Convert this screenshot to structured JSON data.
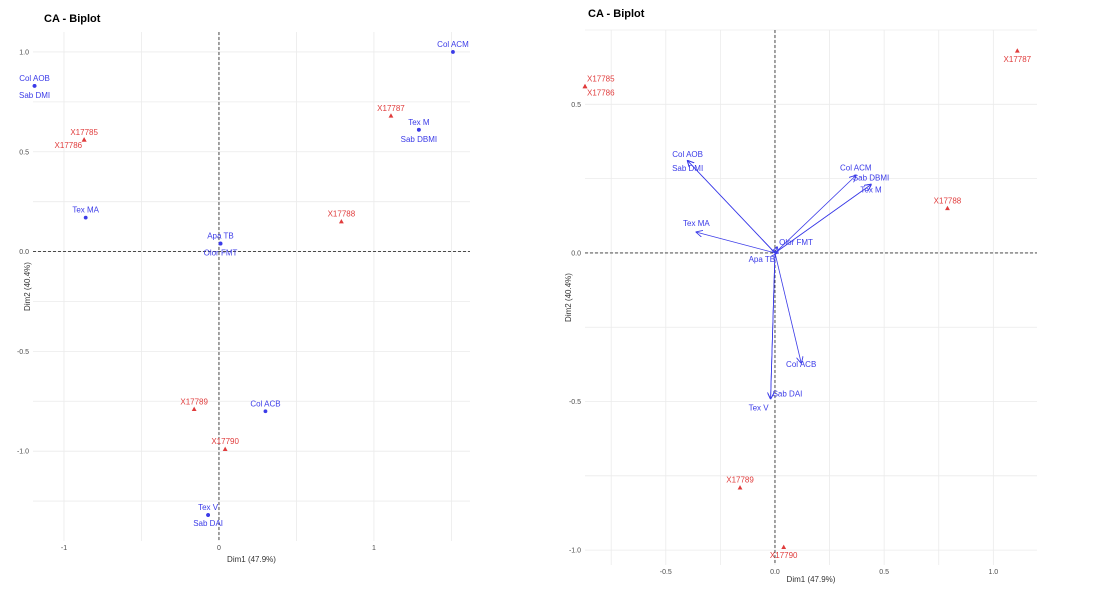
{
  "colors": {
    "rows": "#e03c3c",
    "cols": "#3b3be8",
    "grid": "#ebebeb",
    "ref": "#333333"
  },
  "chart_data": [
    {
      "type": "scatter",
      "title": "CA - Biplot",
      "xlabel": "Dim1 (47.9%)",
      "ylabel": "Dim2 (40.4%)",
      "xlim": [
        -1.2,
        1.62
      ],
      "ylim": [
        -1.45,
        1.1
      ],
      "xticks": [
        -1,
        0,
        1
      ],
      "xtick_labels": [
        "-1",
        "0",
        "1"
      ],
      "yticks": [
        1,
        0.5,
        0,
        -0.5,
        -1
      ],
      "ytick_labels": [
        "1.0",
        "0.5",
        "0.0",
        "-0.5",
        "-1.0"
      ],
      "grid": true,
      "arrows": false,
      "series": [
        {
          "name": "rows",
          "marker": "triangle",
          "color": "#e03c3c",
          "points": [
            {
              "label": "X17785",
              "x": -0.87,
              "y": 0.56,
              "anchor": "middle",
              "dy": -5
            },
            {
              "label": "X17786",
              "x": -0.87,
              "y": 0.56,
              "anchor": "end",
              "dy": 8
            },
            {
              "label": "X17787",
              "x": 1.11,
              "y": 0.68,
              "anchor": "middle",
              "dy": -5
            },
            {
              "label": "X17788",
              "x": 0.79,
              "y": 0.15,
              "anchor": "middle",
              "dy": -5
            },
            {
              "label": "X17789",
              "x": -0.16,
              "y": -0.79,
              "anchor": "middle",
              "dy": -5
            },
            {
              "label": "X17790",
              "x": 0.04,
              "y": -0.99,
              "anchor": "middle",
              "dy": -5
            }
          ]
        },
        {
          "name": "columns",
          "marker": "circle",
          "color": "#3b3be8",
          "points": [
            {
              "label": "Col ACM",
              "x": 1.51,
              "y": 1.0,
              "anchor": "middle",
              "dy": -5
            },
            {
              "label": "Col AOB",
              "x": -1.19,
              "y": 0.83,
              "anchor": "middle",
              "dy": -5
            },
            {
              "label": "Sab DMI",
              "x": -1.19,
              "y": 0.83,
              "anchor": "middle",
              "dy": 12
            },
            {
              "label": "Tex M",
              "x": 1.29,
              "y": 0.61,
              "anchor": "middle",
              "dy": -5
            },
            {
              "label": "Sab DBMI",
              "x": 1.29,
              "y": 0.61,
              "anchor": "middle",
              "dy": 12
            },
            {
              "label": "Tex MA",
              "x": -0.86,
              "y": 0.17,
              "anchor": "middle",
              "dy": -5
            },
            {
              "label": "Apa TB",
              "x": 0.01,
              "y": 0.04,
              "anchor": "middle",
              "dy": -5
            },
            {
              "label": "Olor FMT",
              "x": 0.01,
              "y": 0.04,
              "anchor": "middle",
              "dy": 12
            },
            {
              "label": "Col ACB",
              "x": 0.3,
              "y": -0.8,
              "anchor": "middle",
              "dy": -5
            },
            {
              "label": "Tex V",
              "x": -0.07,
              "y": -1.32,
              "anchor": "middle",
              "dy": -5
            },
            {
              "label": "Sab DAI",
              "x": -0.07,
              "y": -1.32,
              "anchor": "middle",
              "dy": 11
            }
          ]
        }
      ]
    },
    {
      "type": "scatter",
      "title": "CA - Biplot",
      "xlabel": "Dim1 (47.9%)",
      "ylabel": "Dim2 (40.4%)",
      "xlim": [
        -0.87,
        1.2
      ],
      "ylim": [
        -1.05,
        0.75
      ],
      "xticks": [
        -0.5,
        0,
        0.5,
        1
      ],
      "xtick_labels": [
        "-0.5",
        "0.0",
        "0.5",
        "1.0"
      ],
      "yticks": [
        0.5,
        0,
        -0.5,
        -1
      ],
      "ytick_labels": [
        "0.5",
        "0.0",
        "-0.5",
        "-1.0"
      ],
      "grid": true,
      "arrows": true,
      "series": [
        {
          "name": "rows",
          "marker": "triangle",
          "color": "#e03c3c",
          "points": [
            {
              "label": "X17785",
              "x": -0.87,
              "y": 0.56,
              "anchor": "start",
              "dy": -5
            },
            {
              "label": "X17786",
              "x": -0.87,
              "y": 0.56,
              "anchor": "start",
              "dy": 9
            },
            {
              "label": "X17787",
              "x": 1.11,
              "y": 0.68,
              "anchor": "middle",
              "dy": 11
            },
            {
              "label": "X17788",
              "x": 0.79,
              "y": 0.15,
              "anchor": "middle",
              "dy": -5
            },
            {
              "label": "X17789",
              "x": -0.16,
              "y": -0.79,
              "anchor": "middle",
              "dy": -5
            },
            {
              "label": "X17790",
              "x": 0.04,
              "y": -0.99,
              "anchor": "middle",
              "dy": 11
            }
          ]
        },
        {
          "name": "columns",
          "marker": "arrow",
          "color": "#3b3be8",
          "points": [
            {
              "label": "Col ACM",
              "x": 0.37,
              "y": 0.26,
              "anchor": "middle",
              "dy": -5
            },
            {
              "label": "Sab DBMI",
              "x": 0.44,
              "y": 0.23,
              "anchor": "middle",
              "dy": -4
            },
            {
              "label": "Tex M",
              "x": 0.44,
              "y": 0.23,
              "anchor": "middle",
              "dy": 8
            },
            {
              "label": "Col AOB",
              "x": -0.4,
              "y": 0.31,
              "anchor": "middle",
              "dy": -4
            },
            {
              "label": "Sab DMI",
              "x": -0.4,
              "y": 0.31,
              "anchor": "middle",
              "dy": 10
            },
            {
              "label": "Tex MA",
              "x": -0.36,
              "y": 0.07,
              "anchor": "middle",
              "dy": -6
            },
            {
              "label": "Olor FMT",
              "x": 0.01,
              "y": 0.02,
              "anchor": "start",
              "dy": -2
            },
            {
              "label": "Apa TB",
              "x": 0.01,
              "y": 0.0,
              "anchor": "end",
              "dy": 9
            },
            {
              "label": "Col ACB",
              "x": 0.12,
              "y": -0.37,
              "anchor": "middle",
              "dy": 4
            },
            {
              "label": "Sab DAI",
              "x": -0.02,
              "y": -0.49,
              "anchor": "start",
              "dy": -2
            },
            {
              "label": "Tex V",
              "x": -0.02,
              "y": -0.49,
              "anchor": "end",
              "dy": 12
            }
          ]
        }
      ]
    }
  ]
}
